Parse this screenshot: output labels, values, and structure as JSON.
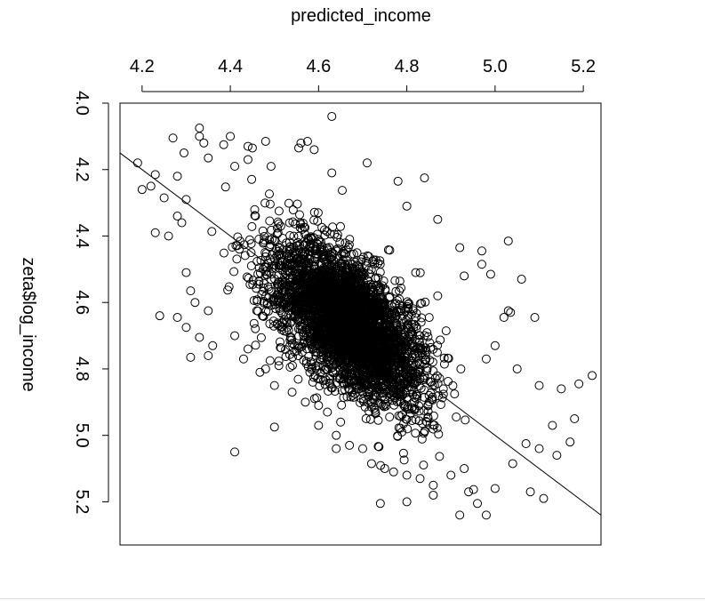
{
  "chart_data": {
    "type": "scatter",
    "title": "",
    "xlabel": "predicted_income",
    "ylabel": "zeta$log_income",
    "xlim": [
      4.15,
      5.24
    ],
    "ylim": [
      5.33,
      4.0
    ],
    "x_ticks": [
      4.2,
      4.4,
      4.6,
      4.8,
      5.0,
      5.2
    ],
    "y_ticks": [
      4.0,
      4.2,
      4.4,
      4.6,
      4.8,
      5.0,
      5.2
    ],
    "x_tick_labels": [
      "4.2",
      "4.4",
      "4.6",
      "4.8",
      "5.0",
      "5.2"
    ],
    "y_tick_labels": [
      "4.0",
      "4.2",
      "4.4",
      "4.6",
      "4.8",
      "5.0",
      "5.2"
    ],
    "x_axis_position": "top",
    "y_axis_position": "left",
    "y_axis_inverted": true,
    "grid": false,
    "marker": "open-circle",
    "point_color": "#000000",
    "reference_line": {
      "x": [
        4.15,
        5.24
      ],
      "y": [
        4.15,
        5.24
      ]
    },
    "points": [
      [
        4.33,
        4.075
      ],
      [
        4.33,
        4.1
      ],
      [
        4.4,
        4.1
      ],
      [
        4.385,
        4.125
      ],
      [
        4.63,
        4.04
      ],
      [
        4.575,
        4.115
      ],
      [
        4.56,
        4.12
      ],
      [
        4.555,
        4.135
      ],
      [
        4.27,
        4.105
      ],
      [
        4.45,
        4.135
      ],
      [
        4.44,
        4.13
      ],
      [
        4.295,
        4.15
      ],
      [
        4.59,
        4.14
      ],
      [
        4.41,
        4.19
      ],
      [
        4.34,
        4.12
      ],
      [
        4.48,
        4.115
      ],
      [
        4.35,
        4.165
      ],
      [
        4.44,
        4.17
      ],
      [
        4.63,
        4.21
      ],
      [
        4.71,
        4.18
      ],
      [
        4.84,
        4.225
      ],
      [
        4.78,
        4.235
      ],
      [
        4.8,
        4.31
      ],
      [
        4.87,
        4.35
      ],
      [
        4.92,
        4.435
      ],
      [
        4.97,
        4.445
      ],
      [
        4.97,
        4.485
      ],
      [
        5.03,
        4.415
      ],
      [
        5.06,
        4.53
      ],
      [
        5.035,
        4.63
      ],
      [
        5.03,
        4.625
      ],
      [
        5.09,
        4.645
      ],
      [
        5.02,
        4.645
      ],
      [
        4.93,
        4.52
      ],
      [
        4.99,
        4.515
      ],
      [
        4.82,
        4.51
      ],
      [
        4.87,
        4.58
      ],
      [
        5.0,
        4.73
      ],
      [
        4.98,
        4.77
      ],
      [
        5.05,
        4.8
      ],
      [
        5.1,
        4.85
      ],
      [
        5.15,
        4.86
      ],
      [
        5.19,
        4.845
      ],
      [
        5.22,
        4.82
      ],
      [
        5.18,
        4.95
      ],
      [
        5.13,
        4.97
      ],
      [
        5.17,
        5.02
      ],
      [
        5.07,
        5.025
      ],
      [
        5.1,
        5.04
      ],
      [
        5.14,
        5.06
      ],
      [
        5.04,
        5.085
      ],
      [
        4.94,
        5.17
      ],
      [
        5.0,
        5.16
      ],
      [
        5.08,
        5.17
      ],
      [
        5.11,
        5.19
      ],
      [
        4.92,
        5.24
      ],
      [
        4.96,
        5.205
      ],
      [
        4.86,
        5.18
      ],
      [
        4.8,
        5.2
      ],
      [
        4.74,
        5.205
      ],
      [
        4.98,
        5.24
      ],
      [
        4.64,
        5.0
      ],
      [
        4.41,
        5.05
      ],
      [
        4.5,
        4.975
      ],
      [
        4.35,
        4.76
      ],
      [
        4.24,
        4.64
      ],
      [
        4.19,
        4.18
      ],
      [
        4.23,
        4.215
      ],
      [
        4.28,
        4.22
      ],
      [
        4.22,
        4.25
      ],
      [
        4.25,
        4.285
      ],
      [
        4.3,
        4.29
      ],
      [
        4.2,
        4.26
      ],
      [
        4.23,
        4.39
      ],
      [
        4.26,
        4.4
      ],
      [
        4.28,
        4.34
      ],
      [
        4.29,
        4.36
      ],
      [
        4.3,
        4.51
      ],
      [
        4.31,
        4.565
      ],
      [
        4.32,
        4.6
      ],
      [
        4.35,
        4.625
      ],
      [
        4.3,
        4.675
      ],
      [
        4.28,
        4.645
      ],
      [
        4.33,
        4.705
      ],
      [
        4.31,
        4.765
      ],
      [
        4.36,
        4.73
      ],
      [
        4.41,
        4.7
      ],
      [
        4.44,
        4.74
      ],
      [
        4.43,
        4.77
      ],
      [
        4.49,
        4.775
      ],
      [
        4.51,
        4.79
      ],
      [
        4.48,
        4.8
      ],
      [
        4.5,
        4.85
      ],
      [
        4.54,
        4.87
      ],
      [
        4.57,
        4.9
      ],
      [
        4.6,
        4.91
      ],
      [
        4.62,
        4.93
      ],
      [
        4.65,
        4.96
      ],
      [
        4.6,
        4.97
      ],
      [
        4.64,
        5.04
      ],
      [
        4.67,
        5.03
      ],
      [
        4.7,
        5.04
      ],
      [
        4.72,
        5.085
      ],
      [
        4.75,
        5.1
      ],
      [
        4.77,
        5.11
      ],
      [
        4.8,
        5.12
      ],
      [
        4.83,
        5.13
      ],
      [
        4.86,
        5.15
      ],
      [
        4.9,
        5.12
      ],
      [
        4.93,
        5.1
      ]
    ]
  }
}
